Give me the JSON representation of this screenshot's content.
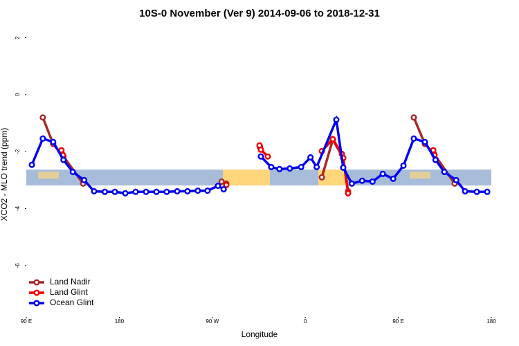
{
  "chart_data": {
    "type": "line",
    "title": "10S-0 November (Ver 9)   2014-09-06 to 2018-12-31",
    "xlabel": "Longitude",
    "ylabel": "XCO2 - MLO trend (ppm)",
    "xlim": [
      90,
      540
    ],
    "ylim": [
      -7.8,
      2.4
    ],
    "xticks": [
      {
        "value": 90,
        "label": "90 E"
      },
      180,
      {
        "value": 270,
        "label": "90 W"
      },
      {
        "value": 360,
        "label": "0"
      },
      {
        "value": 450,
        "label": "90 E"
      },
      {
        "value": 540,
        "label": "180"
      }
    ],
    "yticks": [
      -6,
      -4,
      -2,
      0,
      2
    ],
    "legend": "bottom-left",
    "series": [
      {
        "name": "Land Nadir",
        "color": "#a52a2a",
        "x": [
          106,
          116,
          126,
          145,
          null,
          279,
          283.5,
          null,
          316,
          null,
          376,
          386.6,
          396.7,
          401.4,
          null,
          465,
          475.7,
          484.4,
          504.5
        ],
        "values": [
          -0.8,
          -1.73,
          -2.17,
          -3.12,
          null,
          -3.05,
          -3.12,
          null,
          -1.83,
          null,
          -2.9,
          -1.58,
          -2.22,
          -3.39,
          null,
          -0.8,
          -1.73,
          -2.07,
          -3.12
        ]
      },
      {
        "name": "Land Glint",
        "color": "#ee0000",
        "x": [
          124,
          125.5,
          null,
          283.5,
          null,
          315.7,
          317,
          323.7,
          null,
          376,
          386.6,
          395.4,
          396.7,
          401.4,
          null,
          483.8,
          485
        ],
        "values": [
          -1.95,
          -2.12,
          null,
          -3.17,
          null,
          -1.78,
          -1.93,
          -2.17,
          null,
          -1.98,
          -1.56,
          -2.08,
          -2.22,
          -3.46,
          null,
          -1.95,
          -2.12
        ]
      },
      {
        "name": "Ocean Glint",
        "color": "#0000ee",
        "x": [
          95.4,
          106,
          116,
          126,
          135,
          146,
          155.6,
          166,
          175.7,
          185.8,
          195.8,
          205.9,
          215.9,
          225.9,
          236,
          246,
          256,
          265.4,
          275.5,
          281,
          null,
          317,
          327,
          335,
          345,
          356,
          365,
          371,
          390,
          396.7,
          405,
          415,
          425,
          435,
          445,
          455,
          465,
          475.7,
          486,
          494.5,
          506,
          514.6,
          526,
          536
        ],
        "values": [
          -2.46,
          -1.54,
          -1.66,
          -2.29,
          -2.71,
          -3.0,
          -3.39,
          -3.41,
          -3.41,
          -3.46,
          -3.41,
          -3.41,
          -3.41,
          -3.41,
          -3.39,
          -3.39,
          -3.37,
          -3.37,
          -3.2,
          -3.32,
          null,
          -2.17,
          -2.54,
          -2.61,
          -2.59,
          -2.54,
          -2.2,
          -2.54,
          -0.88,
          -2.56,
          -3.12,
          -3.02,
          -3.05,
          -2.78,
          -2.95,
          -2.49,
          -1.54,
          -1.66,
          -2.29,
          -2.71,
          -3.0,
          -3.39,
          -3.41,
          -3.41
        ]
      }
    ]
  }
}
